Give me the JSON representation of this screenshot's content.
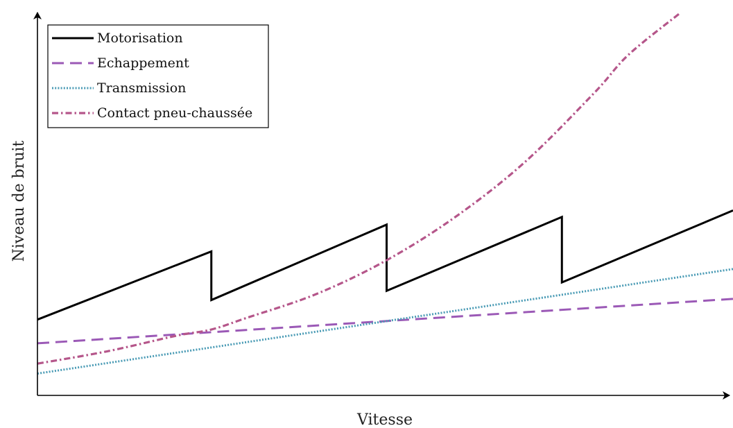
{
  "chart_data": {
    "type": "line",
    "xlabel": "Vitesse",
    "ylabel": "Niveau de bruit",
    "xlim": [
      0,
      100
    ],
    "ylim": [
      0,
      100
    ],
    "grid": false,
    "ticks": false,
    "legend_position": "top-left",
    "series": [
      {
        "name": "Motorisation",
        "color": "#000000",
        "style": "solid",
        "x": [
          0,
          25,
          25,
          50.2,
          50.2,
          75.4,
          75.4,
          100
        ],
        "y": [
          19.8,
          37.6,
          24.9,
          44.6,
          27.3,
          46.6,
          29.5,
          48.3
        ]
      },
      {
        "name": "Echappement",
        "color": "#9b59b6",
        "style": "dashed",
        "x": [
          0,
          100
        ],
        "y": [
          13.6,
          25.2
        ]
      },
      {
        "name": "Transmission",
        "color": "#4a9bb5",
        "style": "dotted",
        "x": [
          0,
          100
        ],
        "y": [
          5.7,
          33.0
        ]
      },
      {
        "name": "Contact pneu-chaussée",
        "color": "#b5568a",
        "style": "dashdot",
        "x": [
          0,
          10,
          20,
          25,
          30,
          40,
          50,
          60,
          70,
          80,
          85,
          92.5
        ],
        "y": [
          8.3,
          11.5,
          15.6,
          17.2,
          20.2,
          26.4,
          35.1,
          46.5,
          60.8,
          78.9,
          89.0,
          100
        ]
      }
    ]
  }
}
